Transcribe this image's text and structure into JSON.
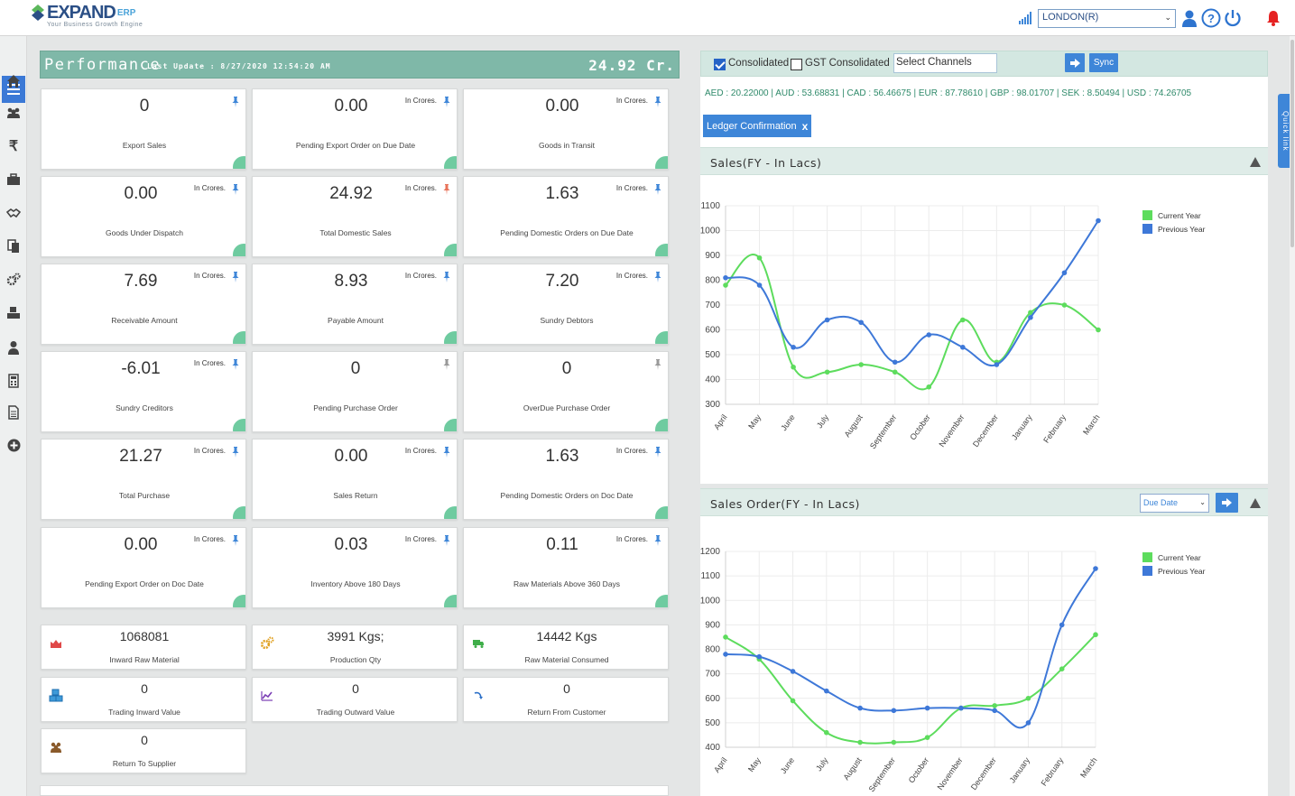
{
  "brand": {
    "name": "EXPAND",
    "suffix": "ERP",
    "tagline": "Your Business Growth Engine"
  },
  "header": {
    "location": "LONDON(R)"
  },
  "performance": {
    "title": "Performance",
    "last_update": "Last Update : 8/27/2020 12:54:20 AM",
    "total": "24.92 Cr."
  },
  "cards": [
    {
      "value": "0",
      "unit": "",
      "label": "Export Sales",
      "pin_color": "#3e86d8"
    },
    {
      "value": "0.00",
      "unit": "In Crores.",
      "label": "Pending Export Order on Due Date",
      "pin_color": "#3e86d8"
    },
    {
      "value": "0.00",
      "unit": "In Crores.",
      "label": "Goods in Transit",
      "pin_color": "#3e86d8"
    },
    {
      "value": "0.00",
      "unit": "In Crores.",
      "label": "Goods Under Dispatch",
      "pin_color": "#3e86d8"
    },
    {
      "value": "24.92",
      "unit": "In Crores.",
      "label": "Total Domestic Sales",
      "pin_color": "#e8735a"
    },
    {
      "value": "1.63",
      "unit": "In Crores.",
      "label": "Pending Domestic Orders on Due Date",
      "pin_color": "#3e86d8"
    },
    {
      "value": "7.69",
      "unit": "In Crores.",
      "label": "Receivable Amount",
      "pin_color": "#3e86d8"
    },
    {
      "value": "8.93",
      "unit": "In Crores.",
      "label": "Payable Amount",
      "pin_color": "#3e86d8"
    },
    {
      "value": "7.20",
      "unit": "In Crores.",
      "label": "Sundry Debtors",
      "pin_color": "#3e86d8"
    },
    {
      "value": "-6.01",
      "unit": "In Crores.",
      "label": "Sundry Creditors",
      "pin_color": "#3e86d8"
    },
    {
      "value": "0",
      "unit": "",
      "label": "Pending Purchase Order",
      "pin_color": "#999999"
    },
    {
      "value": "0",
      "unit": "",
      "label": "OverDue Purchase Order",
      "pin_color": "#999999"
    },
    {
      "value": "21.27",
      "unit": "In Crores.",
      "label": "Total Purchase",
      "pin_color": "#3e86d8"
    },
    {
      "value": "0.00",
      "unit": "In Crores.",
      "label": "Sales Return",
      "pin_color": "#3e86d8"
    },
    {
      "value": "1.63",
      "unit": "In Crores.",
      "label": "Pending Domestic Orders on Doc Date",
      "pin_color": "#3e86d8"
    },
    {
      "value": "0.00",
      "unit": "In Crores.",
      "label": "Pending Export Order on Doc Date",
      "pin_color": "#3e86d8"
    },
    {
      "value": "0.03",
      "unit": "In Crores.",
      "label": "Inventory Above 180 Days",
      "pin_color": "#3e86d8"
    },
    {
      "value": "0.11",
      "unit": "In Crores.",
      "label": "Raw Materials Above 360 Days",
      "pin_color": "#3e86d8"
    }
  ],
  "mini_cards": [
    {
      "value": "1068081",
      "label": "Inward Raw Material",
      "icon": "area-chart-icon"
    },
    {
      "value": "3991 Kgs;",
      "label": "Production Qty",
      "icon": "gears-icon"
    },
    {
      "value": "14442 Kgs",
      "label": "Raw Material Consumed",
      "icon": "truck-icon"
    },
    {
      "value": "0",
      "label": "Trading Inward Value",
      "icon": "cubes-icon"
    },
    {
      "value": "0",
      "label": "Trading Outward Value",
      "icon": "line-chart-icon"
    },
    {
      "value": "0",
      "label": "Return From Customer",
      "icon": "return-arrow-icon"
    },
    {
      "value": "0",
      "label": "Return To Supplier",
      "icon": "users-icon"
    }
  ],
  "toolbar": {
    "consolidated": "Consolidated",
    "gst_consolidated": "GST Consolidated",
    "channels_placeholder": "Select Channels",
    "sync": "Sync"
  },
  "rates": "AED : 20.22000 | AUD : 53.68831 | CAD : 56.46675 | EUR : 87.78610 | GBP : 98.01707 | SEK : 8.50494 | USD : 74.26705",
  "ledger": {
    "label": "Ledger Confirmation",
    "close": "x"
  },
  "quick_link": "Quick link",
  "colors": {
    "current": "#5ddc5d",
    "previous": "#3e78d8",
    "accent": "#3e86d8",
    "teal": "#7fb8a8"
  },
  "chart_data": [
    {
      "type": "line",
      "title": "Sales(FY - In Lacs)",
      "categories": [
        "April",
        "May",
        "June",
        "July",
        "August",
        "September",
        "October",
        "November",
        "December",
        "January",
        "February",
        "March"
      ],
      "yticks": [
        300,
        400,
        500,
        600,
        700,
        800,
        900,
        1000,
        1100
      ],
      "ylim": [
        300,
        1100
      ],
      "series": [
        {
          "name": "Current Year",
          "values": [
            780,
            890,
            450,
            430,
            460,
            430,
            370,
            640,
            470,
            670,
            700,
            600
          ]
        },
        {
          "name": "Previous Year",
          "values": [
            810,
            780,
            530,
            640,
            630,
            470,
            580,
            530,
            460,
            650,
            830,
            1040
          ]
        }
      ],
      "legend": "top-right"
    },
    {
      "type": "line",
      "title": "Sales Order(FY - In Lacs)",
      "filter": "Due Date",
      "categories": [
        "April",
        "May",
        "June",
        "July",
        "August",
        "September",
        "October",
        "November",
        "December",
        "January",
        "February",
        "March"
      ],
      "yticks": [
        400,
        500,
        600,
        700,
        800,
        900,
        1000,
        1100,
        1200
      ],
      "ylim": [
        400,
        1200
      ],
      "series": [
        {
          "name": "Current Year",
          "values": [
            850,
            760,
            590,
            460,
            420,
            420,
            440,
            560,
            570,
            600,
            720,
            860
          ]
        },
        {
          "name": "Previous Year",
          "values": [
            780,
            770,
            710,
            630,
            560,
            550,
            560,
            560,
            550,
            500,
            900,
            1130
          ]
        }
      ],
      "legend": "top-right"
    }
  ]
}
